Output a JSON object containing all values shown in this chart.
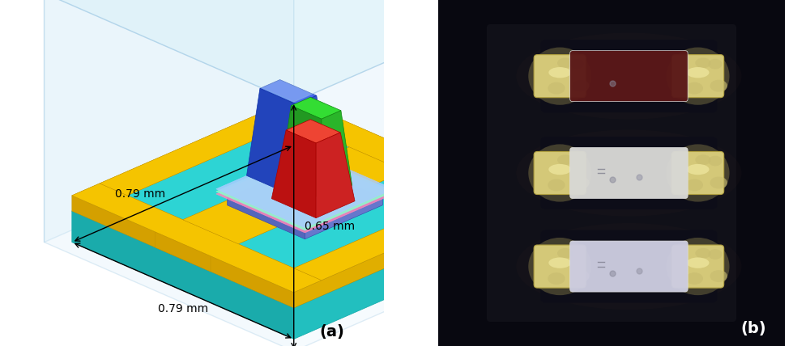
{
  "fig_width": 10.0,
  "fig_height": 4.28,
  "bg_color": "#ffffff",
  "label_a": "(a)",
  "label_b": "(b)",
  "label_fontsize": 14,
  "dim_079_bottom": "0.79 mm",
  "dim_079_left": "0.79 mm",
  "dim_065": "0.65 mm",
  "dim_fontsize": 10,
  "cyan_top": "#2dd4d4",
  "cyan_side_l": "#1aabab",
  "cyan_side_r": "#22bfbf",
  "yellow_top": "#f5c400",
  "yellow_side_l": "#d4a000",
  "yellow_side_r": "#e0ae00",
  "enc_top": "#c5e8f5",
  "enc_left": "#d0eaf8",
  "enc_right": "#ddf0fc",
  "chip_blue_top": "#4466ee",
  "chip_blue_fl": "#2244bb",
  "chip_blue_fr": "#3355cc",
  "chip_green_top": "#33dd33",
  "chip_green_fl": "#229922",
  "chip_green_fr": "#2ab52a",
  "chip_red_top": "#ee4433",
  "chip_red_fl": "#bb1111",
  "chip_red_fr": "#cc2222",
  "sub_top": "#7788dd",
  "sub_fl": "#5566bb",
  "sub_fr": "#6677cc",
  "wire_pink": "#ff88bb",
  "wire_green_thin": "#88ffcc",
  "wire_blue_thin": "#aaccff"
}
